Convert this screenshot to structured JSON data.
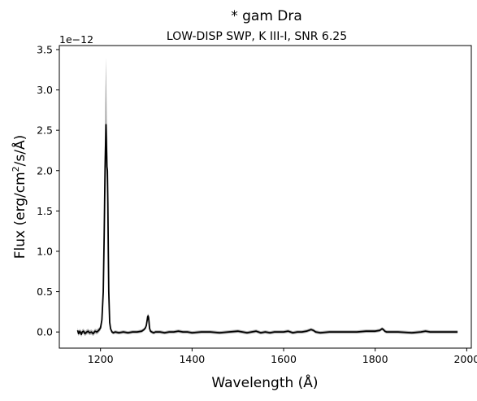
{
  "chart_data": {
    "type": "line",
    "title": "* gam Dra",
    "subtitle": "LOW-DISP SWP, K III-I, SNR 6.25",
    "xlabel": "Wavelength (Å)",
    "ylabel_main": "Flux (erg/cm",
    "ylabel_sup": "2",
    "ylabel_tail": "/s/Å)",
    "y_offset_label": "1e−12",
    "xlim": [
      1110,
      2010
    ],
    "ylim": [
      -0.2,
      3.55
    ],
    "x_ticks": [
      1200,
      1400,
      1600,
      1800,
      2000
    ],
    "x_tick_labels": [
      "1200",
      "1400",
      "1600",
      "1800",
      "2000"
    ],
    "y_ticks": [
      0.0,
      0.5,
      1.0,
      1.5,
      2.0,
      2.5,
      3.0,
      3.5
    ],
    "y_tick_labels": [
      "0.0",
      "0.5",
      "1.0",
      "1.5",
      "2.0",
      "2.5",
      "3.0",
      "3.5"
    ],
    "grid": false,
    "series": [
      {
        "color": "#000000",
        "band_color": "#a9a9a9",
        "x": [
          1150,
          1152,
          1155,
          1158,
          1160,
          1163,
          1166,
          1170,
          1173,
          1176,
          1180,
          1184,
          1188,
          1192,
          1196,
          1200,
          1203,
          1206,
          1208,
          1210,
          1212,
          1213,
          1214,
          1215,
          1216,
          1217,
          1218,
          1220,
          1222,
          1225,
          1228,
          1232,
          1240,
          1250,
          1260,
          1270,
          1280,
          1290,
          1295,
          1298,
          1300,
          1302,
          1303,
          1304,
          1305,
          1306,
          1307,
          1309,
          1312,
          1316,
          1320,
          1330,
          1340,
          1350,
          1360,
          1370,
          1380,
          1390,
          1400,
          1420,
          1440,
          1460,
          1480,
          1500,
          1510,
          1520,
          1530,
          1540,
          1550,
          1560,
          1570,
          1580,
          1600,
          1610,
          1620,
          1630,
          1640,
          1650,
          1655,
          1660,
          1665,
          1670,
          1680,
          1700,
          1720,
          1740,
          1760,
          1780,
          1800,
          1810,
          1815,
          1818,
          1821,
          1825,
          1830,
          1850,
          1880,
          1900,
          1910,
          1920,
          1950,
          1980
        ],
        "y": [
          0.02,
          -0.02,
          0.01,
          -0.03,
          0.0,
          0.01,
          -0.02,
          0.0,
          0.01,
          -0.01,
          0.0,
          -0.02,
          0.01,
          0.0,
          0.02,
          0.05,
          0.15,
          0.5,
          1.2,
          2.05,
          2.57,
          2.3,
          2.05,
          2.0,
          1.6,
          1.0,
          0.5,
          0.12,
          0.04,
          0.0,
          -0.01,
          0.0,
          -0.01,
          0.0,
          -0.01,
          0.0,
          0.0,
          0.01,
          0.03,
          0.05,
          0.08,
          0.15,
          0.19,
          0.2,
          0.18,
          0.12,
          0.05,
          0.01,
          0.0,
          -0.01,
          0.0,
          0.0,
          -0.01,
          0.0,
          0.0,
          0.01,
          0.0,
          0.0,
          -0.01,
          0.0,
          0.0,
          -0.01,
          0.0,
          0.01,
          0.0,
          -0.01,
          0.0,
          0.01,
          -0.01,
          0.0,
          -0.01,
          0.0,
          0.0,
          0.01,
          -0.01,
          0.0,
          0.0,
          0.01,
          0.02,
          0.03,
          0.02,
          0.0,
          -0.01,
          0.0,
          0.0,
          0.0,
          0.0,
          0.01,
          0.01,
          0.02,
          0.04,
          0.03,
          0.01,
          0.0,
          0.0,
          0.0,
          -0.01,
          0.0,
          0.01,
          0.0,
          0.0,
          0.0
        ],
        "upper": [
          0.05,
          0.01,
          0.04,
          0.0,
          0.03,
          0.04,
          0.01,
          0.03,
          0.04,
          0.02,
          0.03,
          0.01,
          0.04,
          0.03,
          0.05,
          0.08,
          0.2,
          0.65,
          1.6,
          2.8,
          3.4,
          3.0,
          2.6,
          2.4,
          1.9,
          1.2,
          0.6,
          0.15,
          0.06,
          0.02,
          0.01,
          0.02,
          0.01,
          0.02,
          0.01,
          0.02,
          0.02,
          0.03,
          0.05,
          0.07,
          0.1,
          0.18,
          0.22,
          0.23,
          0.21,
          0.15,
          0.07,
          0.03,
          0.02,
          0.01,
          0.02,
          0.02,
          0.01,
          0.02,
          0.02,
          0.03,
          0.02,
          0.02,
          0.01,
          0.02,
          0.02,
          0.01,
          0.02,
          0.03,
          0.02,
          0.01,
          0.02,
          0.03,
          0.01,
          0.02,
          0.01,
          0.02,
          0.02,
          0.03,
          0.01,
          0.02,
          0.02,
          0.03,
          0.04,
          0.05,
          0.04,
          0.02,
          0.01,
          0.02,
          0.02,
          0.02,
          0.02,
          0.03,
          0.03,
          0.04,
          0.06,
          0.05,
          0.03,
          0.02,
          0.02,
          0.02,
          0.01,
          0.02,
          0.03,
          0.02,
          0.02,
          0.02
        ],
        "lower": [
          -0.01,
          -0.05,
          -0.02,
          -0.06,
          -0.03,
          -0.02,
          -0.05,
          -0.03,
          -0.02,
          -0.04,
          -0.03,
          -0.05,
          -0.02,
          -0.03,
          -0.01,
          0.02,
          0.1,
          0.38,
          0.9,
          1.6,
          2.1,
          1.9,
          1.75,
          1.7,
          1.35,
          0.85,
          0.42,
          0.09,
          0.02,
          -0.02,
          -0.03,
          -0.02,
          -0.03,
          -0.02,
          -0.03,
          -0.02,
          -0.02,
          -0.01,
          0.01,
          0.03,
          0.06,
          0.12,
          0.16,
          0.17,
          0.15,
          0.09,
          0.03,
          -0.01,
          -0.02,
          -0.03,
          -0.02,
          -0.02,
          -0.03,
          -0.02,
          -0.02,
          -0.01,
          -0.02,
          -0.02,
          -0.03,
          -0.02,
          -0.02,
          -0.03,
          -0.02,
          -0.01,
          -0.02,
          -0.03,
          -0.02,
          -0.01,
          -0.03,
          -0.02,
          -0.03,
          -0.02,
          -0.02,
          -0.01,
          -0.03,
          -0.02,
          -0.02,
          -0.01,
          0.0,
          0.01,
          0.0,
          -0.02,
          -0.03,
          -0.02,
          -0.02,
          -0.02,
          -0.02,
          -0.01,
          -0.01,
          0.0,
          0.02,
          0.01,
          -0.01,
          -0.02,
          -0.02,
          -0.02,
          -0.03,
          -0.02,
          -0.01,
          -0.02,
          -0.02,
          -0.02
        ]
      }
    ]
  }
}
